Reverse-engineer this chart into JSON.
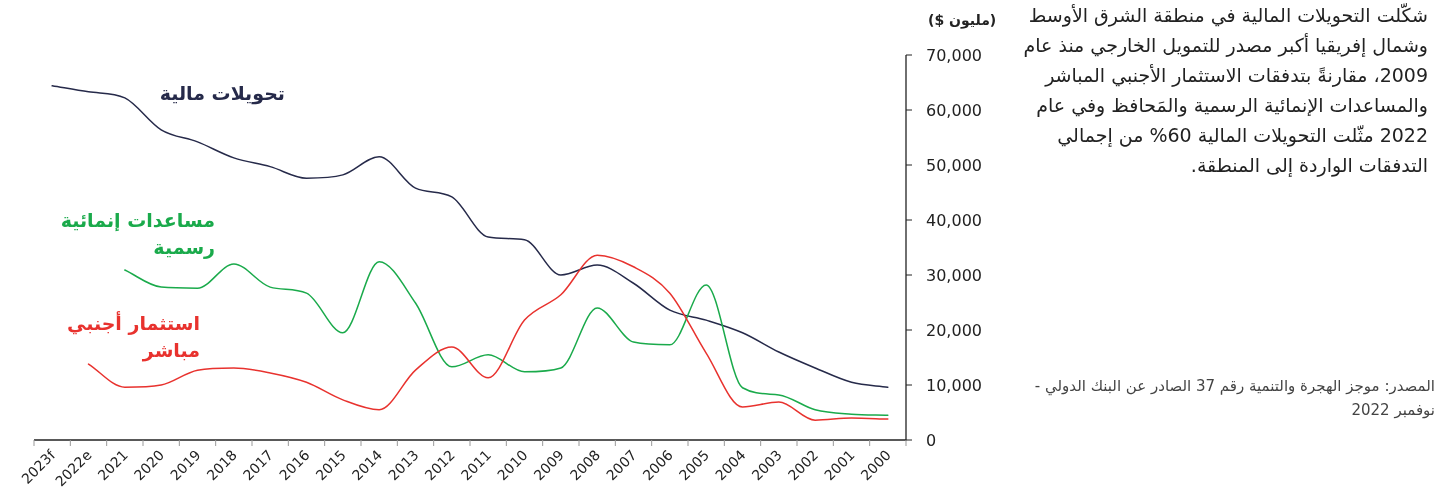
{
  "chart_data": {
    "type": "line",
    "ylabel": "(مليون $)",
    "categories": [
      "2023f",
      "2022e",
      "2021",
      "2020",
      "2019",
      "2018",
      "2017",
      "2016",
      "2015",
      "2014",
      "2013",
      "2012",
      "2011",
      "2010",
      "2009",
      "2008",
      "2007",
      "2006",
      "2005",
      "2004",
      "2003",
      "2002",
      "2001",
      "2000"
    ],
    "series": [
      {
        "name": "تحويلات مالية",
        "color": "#262a4a",
        "values": [
          64400,
          63300,
          62200,
          56400,
          54200,
          51300,
          49700,
          47600,
          48200,
          51500,
          45800,
          44200,
          36900,
          36400,
          30000,
          31800,
          28500,
          23600,
          21800,
          19500,
          16000,
          13100,
          10500,
          9600
        ]
      },
      {
        "name": "مساعدات إنمائية رسمية",
        "color": "#1aaa4b",
        "values": [
          null,
          null,
          30900,
          27800,
          27600,
          32000,
          27800,
          26700,
          19500,
          32400,
          24900,
          13300,
          15500,
          12400,
          13100,
          24000,
          17800,
          17300,
          28200,
          9500,
          8200,
          5500,
          4700,
          4500
        ]
      },
      {
        "name": "استثمار أجنبي مباشر",
        "color": "#e8322e",
        "values": [
          null,
          13800,
          9600,
          10000,
          12700,
          13100,
          12200,
          10500,
          7300,
          5500,
          12700,
          16900,
          11300,
          21800,
          26400,
          33600,
          31500,
          26700,
          15800,
          6000,
          6900,
          3600,
          4000,
          3800
        ]
      }
    ],
    "ylim": [
      0,
      70000
    ],
    "yticks": [
      0,
      {
        "value": 10000,
        "label": "10,000"
      },
      {
        "value": 20000,
        "label": "20,000"
      },
      {
        "value": 30000,
        "label": "30,000"
      },
      {
        "value": 40000,
        "label": "40,000"
      },
      {
        "value": 50000,
        "label": "50,000"
      },
      {
        "value": 60000,
        "label": "60,000"
      },
      {
        "value": 70000,
        "label": "70,000"
      }
    ],
    "grid": false,
    "annotations": [
      "شكّلت التحويلات المالية في منطقة الشرق الأوسط وشمال إفريقيا أكبر مصدر للتمويل الخارجي منذ عام 2009، مقارنةً بتدفقات الاستثمار الأجنبي المباشر والمساعدات الإنمائية الرسمية والمَحافظ وفي عام 2022 مثّلت التحويلات المالية 60% من إجمالي التدفقات الواردة إلى المنطقة.",
      "المصدر: موجز الهجرة والتنمية رقم 37 الصادر عن البنك الدولي - نوفمبر 2022"
    ]
  }
}
